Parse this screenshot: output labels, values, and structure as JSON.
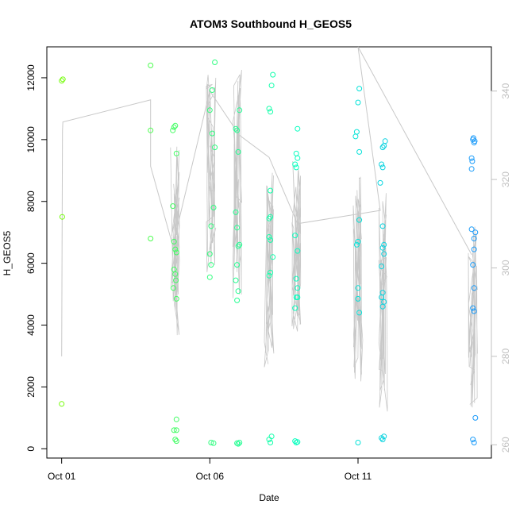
{
  "chart_data": {
    "type": "scatter",
    "title": "ATOM3 Southbound H_GEOS5",
    "xlabel": "Date",
    "ylabel": "H_GEOS5",
    "x_axis_type": "date",
    "xlim": [
      "2016-09-30T12:00",
      "2016-10-15T12:00"
    ],
    "ylim": [
      -300,
      13000
    ],
    "ylim_right": [
      257,
      350
    ],
    "x_ticks": [
      {
        "value": "2016-10-01",
        "label": "Oct 01"
      },
      {
        "value": "2016-10-06",
        "label": "Oct 06"
      },
      {
        "value": "2016-10-11",
        "label": "Oct 11"
      }
    ],
    "y_ticks": [
      0,
      2000,
      4000,
      6000,
      8000,
      10000,
      12000
    ],
    "y_ticks_right": [
      260,
      280,
      300,
      320,
      340
    ],
    "grid": false,
    "colors": {
      "points_start": "#7cfc00",
      "points_mid": "#00ffcc",
      "points_end": "#1e90ff",
      "line": "#c8c8c8",
      "axis": "#000000",
      "right_axis": "#c0c0c0"
    },
    "series": [
      {
        "kind": "points",
        "points": [
          [
            "2016-10-01T00:00",
            11900
          ],
          [
            "2016-10-01T01:00",
            11950
          ],
          [
            "2016-10-01T00:30",
            7500
          ],
          [
            "2016-10-01T00:00",
            1450
          ],
          [
            "2016-10-04T00:00",
            12400
          ],
          [
            "2016-10-04T00:00",
            10300
          ],
          [
            "2016-10-04T00:00",
            6800
          ],
          [
            "2016-10-04T18:00",
            10300
          ],
          [
            "2016-10-04T19:00",
            10400
          ],
          [
            "2016-10-04T20:00",
            10450
          ],
          [
            "2016-10-04T21:00",
            9550
          ],
          [
            "2016-10-04T18:00",
            7850
          ],
          [
            "2016-10-04T19:00",
            6700
          ],
          [
            "2016-10-04T20:00",
            6450
          ],
          [
            "2016-10-04T21:00",
            6350
          ],
          [
            "2016-10-04T19:00",
            5800
          ],
          [
            "2016-10-04T20:00",
            5650
          ],
          [
            "2016-10-04T20:30",
            5450
          ],
          [
            "2016-10-04T18:30",
            5200
          ],
          [
            "2016-10-04T21:00",
            4850
          ],
          [
            "2016-10-04T19:00",
            600
          ],
          [
            "2016-10-04T21:00",
            600
          ],
          [
            "2016-10-04T21:00",
            950
          ],
          [
            "2016-10-04T20:00",
            300
          ],
          [
            "2016-10-04T21:00",
            250
          ],
          [
            "2016-10-06T00:00",
            10950
          ],
          [
            "2016-10-06T02:00",
            10200
          ],
          [
            "2016-10-06T04:00",
            9750
          ],
          [
            "2016-10-06T02:00",
            11600
          ],
          [
            "2016-10-06T04:00",
            12500
          ],
          [
            "2016-10-06T03:00",
            7800
          ],
          [
            "2016-10-06T01:00",
            7200
          ],
          [
            "2016-10-06T00:00",
            6300
          ],
          [
            "2016-10-06T01:00",
            5950
          ],
          [
            "2016-10-06T00:00",
            5550
          ],
          [
            "2016-10-06T01:00",
            200
          ],
          [
            "2016-10-06T03:00",
            180
          ],
          [
            "2016-10-06T21:00",
            10350
          ],
          [
            "2016-10-06T23:00",
            9600
          ],
          [
            "2016-10-07T00:00",
            10950
          ],
          [
            "2016-10-06T22:00",
            10300
          ],
          [
            "2016-10-06T21:00",
            7650
          ],
          [
            "2016-10-06T22:00",
            7150
          ],
          [
            "2016-10-06T23:00",
            6550
          ],
          [
            "2016-10-07T00:00",
            6600
          ],
          [
            "2016-10-06T22:00",
            5950
          ],
          [
            "2016-10-06T21:00",
            5450
          ],
          [
            "2016-10-06T23:00",
            5100
          ],
          [
            "2016-10-06T22:00",
            4800
          ],
          [
            "2016-10-06T22:00",
            180
          ],
          [
            "2016-10-06T23:00",
            160
          ],
          [
            "2016-10-07T00:00",
            200
          ],
          [
            "2016-10-08T00:00",
            11000
          ],
          [
            "2016-10-08T01:00",
            10900
          ],
          [
            "2016-10-08T02:00",
            11750
          ],
          [
            "2016-10-08T03:00",
            12100
          ],
          [
            "2016-10-08T01:00",
            8350
          ],
          [
            "2016-10-08T01:00",
            7500
          ],
          [
            "2016-10-08T00:00",
            7450
          ],
          [
            "2016-10-08T00:00",
            6850
          ],
          [
            "2016-10-08T01:00",
            6750
          ],
          [
            "2016-10-08T03:00",
            6200
          ],
          [
            "2016-10-08T01:00",
            5700
          ],
          [
            "2016-10-08T00:00",
            5600
          ],
          [
            "2016-10-08T00:00",
            300
          ],
          [
            "2016-10-08T01:00",
            200
          ],
          [
            "2016-10-08T02:00",
            400
          ],
          [
            "2016-10-08T22:00",
            9550
          ],
          [
            "2016-10-08T23:00",
            9400
          ],
          [
            "2016-10-08T21:00",
            9200
          ],
          [
            "2016-10-08T22:00",
            9100
          ],
          [
            "2016-10-08T23:00",
            10350
          ],
          [
            "2016-10-08T21:00",
            6900
          ],
          [
            "2016-10-08T23:00",
            6400
          ],
          [
            "2016-10-08T22:00",
            5500
          ],
          [
            "2016-10-08T23:00",
            5200
          ],
          [
            "2016-10-08T22:00",
            4900
          ],
          [
            "2016-10-08T23:00",
            4900
          ],
          [
            "2016-10-08T21:00",
            4550
          ],
          [
            "2016-10-08T21:00",
            250
          ],
          [
            "2016-10-08T22:00",
            200
          ],
          [
            "2016-10-08T23:00",
            220
          ],
          [
            "2016-10-10T22:00",
            10100
          ],
          [
            "2016-10-10T23:00",
            10250
          ],
          [
            "2016-10-11T00:00",
            11200
          ],
          [
            "2016-10-11T01:00",
            11650
          ],
          [
            "2016-10-11T01:00",
            9600
          ],
          [
            "2016-10-11T01:00",
            7400
          ],
          [
            "2016-10-11T00:00",
            6700
          ],
          [
            "2016-10-10T23:00",
            6600
          ],
          [
            "2016-10-11T00:00",
            5200
          ],
          [
            "2016-10-11T00:00",
            4850
          ],
          [
            "2016-10-11T01:00",
            4400
          ],
          [
            "2016-10-11T00:00",
            200
          ],
          [
            "2016-10-11T18:00",
            8600
          ],
          [
            "2016-10-11T20:00",
            9100
          ],
          [
            "2016-10-11T19:00",
            9200
          ],
          [
            "2016-10-11T20:00",
            9750
          ],
          [
            "2016-10-11T21:00",
            9800
          ],
          [
            "2016-10-11T22:00",
            9950
          ],
          [
            "2016-10-11T20:00",
            7200
          ],
          [
            "2016-10-11T21:00",
            6600
          ],
          [
            "2016-10-11T19:00",
            5900
          ],
          [
            "2016-10-11T20:00",
            6500
          ],
          [
            "2016-10-11T21:00",
            6300
          ],
          [
            "2016-10-11T20:00",
            5050
          ],
          [
            "2016-10-11T19:00",
            4900
          ],
          [
            "2016-10-11T21:00",
            4750
          ],
          [
            "2016-10-11T20:00",
            4600
          ],
          [
            "2016-10-11T19:00",
            350
          ],
          [
            "2016-10-11T20:00",
            300
          ],
          [
            "2016-10-11T21:00",
            400
          ],
          [
            "2016-10-14T20:00",
            9400
          ],
          [
            "2016-10-14T20:30",
            9300
          ],
          [
            "2016-10-14T21:00",
            10000
          ],
          [
            "2016-10-14T21:30",
            10050
          ],
          [
            "2016-10-14T22:00",
            9900
          ],
          [
            "2016-10-14T22:30",
            9950
          ],
          [
            "2016-10-14T20:00",
            9050
          ],
          [
            "2016-10-14T20:00",
            7100
          ],
          [
            "2016-10-14T23:00",
            7000
          ],
          [
            "2016-10-14T22:00",
            6800
          ],
          [
            "2016-10-14T22:00",
            6450
          ],
          [
            "2016-10-14T21:00",
            5950
          ],
          [
            "2016-10-14T22:00",
            5200
          ],
          [
            "2016-10-14T21:00",
            4550
          ],
          [
            "2016-10-14T22:00",
            4450
          ],
          [
            "2016-10-14T23:00",
            1000
          ],
          [
            "2016-10-14T21:00",
            300
          ],
          [
            "2016-10-14T22:00",
            200
          ]
        ]
      },
      {
        "kind": "line",
        "axis": "right",
        "path": [
          [
            "2016-10-01T00:00",
            280
          ],
          [
            "2016-10-01T00:40",
            331
          ],
          [
            "2016-10-01T01:00",
            333
          ],
          [
            "2016-10-04T00:00",
            338
          ],
          [
            "2016-10-04T00:00",
            323
          ],
          [
            "2016-10-04T18:00",
            305
          ],
          [
            "2016-10-06T00:00",
            340
          ],
          [
            "2016-10-07T00:00",
            330
          ],
          [
            "2016-10-08T00:00",
            325
          ],
          [
            "2016-10-08T23:00",
            310
          ],
          [
            "2016-10-11T18:00",
            313
          ],
          [
            "2016-10-11T00:00",
            350
          ],
          [
            "2016-10-14T20:00",
            303
          ]
        ]
      }
    ]
  }
}
